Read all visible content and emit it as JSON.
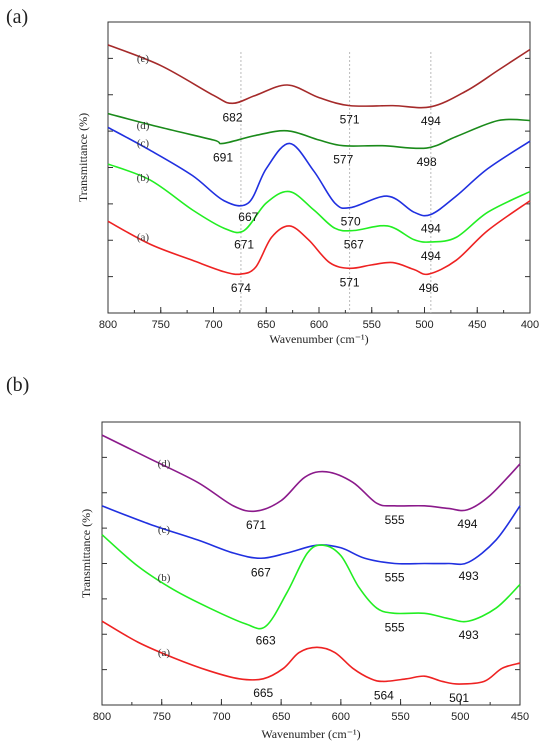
{
  "panels": [
    {
      "label": "(a)"
    },
    {
      "label": "(b)"
    }
  ],
  "chart_data": [
    {
      "type": "line",
      "xlabel": "Wavenumber (cm⁻¹)",
      "ylabel": "Transmittance (%)",
      "xlim": [
        800,
        400
      ],
      "xticks": [
        800,
        750,
        700,
        650,
        600,
        550,
        500,
        450,
        400
      ],
      "grid": false,
      "reference_lines_x": [
        674,
        571,
        494
      ],
      "series": [
        {
          "name": "(e)",
          "color": "#a52a2a",
          "x": [
            800,
            750,
            700,
            682,
            660,
            630,
            600,
            571,
            530,
            494,
            460,
            430,
            400
          ],
          "y": [
            0.92,
            0.83,
            0.7,
            0.665,
            0.7,
            0.745,
            0.69,
            0.655,
            0.655,
            0.65,
            0.72,
            0.81,
            0.9
          ]
        },
        {
          "name": "(d)",
          "color": "#1a8a1a",
          "x": [
            800,
            750,
            700,
            691,
            660,
            630,
            600,
            577,
            540,
            498,
            470,
            430,
            400
          ],
          "y": [
            0.62,
            0.56,
            0.505,
            0.49,
            0.525,
            0.545,
            0.505,
            0.48,
            0.48,
            0.47,
            0.52,
            0.59,
            0.59
          ]
        },
        {
          "name": "(c)",
          "color": "#2030e0",
          "x": [
            800,
            760,
            720,
            690,
            667,
            650,
            628,
            605,
            585,
            570,
            535,
            510,
            494,
            470,
            440,
            400
          ],
          "y": [
            0.56,
            0.46,
            0.35,
            0.24,
            0.23,
            0.38,
            0.49,
            0.37,
            0.23,
            0.21,
            0.26,
            0.19,
            0.18,
            0.26,
            0.38,
            0.5
          ]
        },
        {
          "name": "(b)",
          "color": "#22ee22",
          "x": [
            800,
            760,
            720,
            690,
            671,
            650,
            628,
            605,
            585,
            567,
            535,
            510,
            494,
            470,
            440,
            400
          ],
          "y": [
            0.4,
            0.33,
            0.2,
            0.12,
            0.11,
            0.23,
            0.28,
            0.2,
            0.12,
            0.11,
            0.13,
            0.07,
            0.06,
            0.08,
            0.19,
            0.28
          ]
        },
        {
          "name": "(a)",
          "color": "#ee2222",
          "x": [
            800,
            760,
            720,
            690,
            674,
            660,
            645,
            628,
            610,
            590,
            571,
            550,
            530,
            510,
            496,
            470,
            440,
            400
          ],
          "y": [
            0.15,
            0.05,
            -0.02,
            -0.07,
            -0.08,
            -0.05,
            0.08,
            0.13,
            0.07,
            -0.03,
            -0.055,
            -0.04,
            -0.03,
            -0.06,
            -0.08,
            -0.02,
            0.11,
            0.24
          ]
        }
      ],
      "peak_labels": [
        {
          "text": "682",
          "x": 682,
          "y": 0.665
        },
        {
          "text": "571",
          "x": 571,
          "y": 0.655
        },
        {
          "text": "494",
          "x": 494,
          "y": 0.65
        },
        {
          "text": "691",
          "x": 691,
          "y": 0.49
        },
        {
          "text": "577",
          "x": 577,
          "y": 0.48
        },
        {
          "text": "498",
          "x": 498,
          "y": 0.47
        },
        {
          "text": "667",
          "x": 667,
          "y": 0.23
        },
        {
          "text": "570",
          "x": 570,
          "y": 0.21
        },
        {
          "text": "494",
          "x": 494,
          "y": 0.18
        },
        {
          "text": "671",
          "x": 671,
          "y": 0.11
        },
        {
          "text": "567",
          "x": 567,
          "y": 0.11
        },
        {
          "text": "494",
          "x": 494,
          "y": 0.06
        },
        {
          "text": "674",
          "x": 674,
          "y": -0.08
        },
        {
          "text": "571",
          "x": 571,
          "y": -0.055
        },
        {
          "text": "496",
          "x": 496,
          "y": -0.08
        }
      ]
    },
    {
      "type": "line",
      "xlabel": "Wavenumber (cm⁻¹)",
      "ylabel": "Transmittance (%)",
      "xlim": [
        800,
        450
      ],
      "xticks": [
        800,
        750,
        700,
        650,
        600,
        550,
        500,
        450
      ],
      "grid": false,
      "series": [
        {
          "name": "(d)",
          "color": "#8b1a8b",
          "x": [
            800,
            760,
            720,
            690,
            671,
            650,
            630,
            612,
            590,
            570,
            555,
            530,
            510,
            494,
            475,
            450
          ],
          "y": [
            0.95,
            0.86,
            0.77,
            0.68,
            0.66,
            0.7,
            0.79,
            0.81,
            0.77,
            0.69,
            0.68,
            0.68,
            0.67,
            0.665,
            0.72,
            0.84
          ]
        },
        {
          "name": "(c)",
          "color": "#2030e0",
          "x": [
            800,
            760,
            720,
            690,
            667,
            645,
            620,
            600,
            580,
            555,
            530,
            510,
            493,
            470,
            450
          ],
          "y": [
            0.68,
            0.61,
            0.55,
            0.5,
            0.48,
            0.5,
            0.53,
            0.52,
            0.48,
            0.46,
            0.46,
            0.46,
            0.465,
            0.55,
            0.68
          ]
        },
        {
          "name": "(b)",
          "color": "#22ee22",
          "x": [
            800,
            770,
            740,
            710,
            680,
            663,
            645,
            628,
            615,
            600,
            585,
            570,
            555,
            530,
            510,
            493,
            470,
            450
          ],
          "y": [
            0.57,
            0.45,
            0.36,
            0.29,
            0.23,
            0.22,
            0.35,
            0.5,
            0.53,
            0.49,
            0.37,
            0.29,
            0.27,
            0.27,
            0.25,
            0.24,
            0.29,
            0.38
          ]
        },
        {
          "name": "(a)",
          "color": "#ee2222",
          "x": [
            800,
            770,
            740,
            710,
            685,
            665,
            648,
            635,
            620,
            605,
            590,
            575,
            564,
            545,
            530,
            515,
            501,
            480,
            465,
            450
          ],
          "y": [
            0.24,
            0.16,
            0.1,
            0.05,
            0.02,
            0.02,
            0.06,
            0.12,
            0.14,
            0.12,
            0.06,
            0.02,
            0.01,
            0.02,
            0.03,
            0.01,
            0.0,
            0.01,
            0.06,
            0.08
          ]
        }
      ],
      "peak_labels": [
        {
          "text": "671",
          "x": 671,
          "y": 0.66
        },
        {
          "text": "555",
          "x": 555,
          "y": 0.68
        },
        {
          "text": "494",
          "x": 494,
          "y": 0.665
        },
        {
          "text": "667",
          "x": 667,
          "y": 0.48
        },
        {
          "text": "555",
          "x": 555,
          "y": 0.46
        },
        {
          "text": "493",
          "x": 493,
          "y": 0.465
        },
        {
          "text": "663",
          "x": 663,
          "y": 0.22
        },
        {
          "text": "555",
          "x": 555,
          "y": 0.27
        },
        {
          "text": "493",
          "x": 493,
          "y": 0.24
        },
        {
          "text": "665",
          "x": 665,
          "y": 0.02
        },
        {
          "text": "564",
          "x": 564,
          "y": 0.01
        },
        {
          "text": "501",
          "x": 501,
          "y": 0.0
        }
      ]
    }
  ]
}
